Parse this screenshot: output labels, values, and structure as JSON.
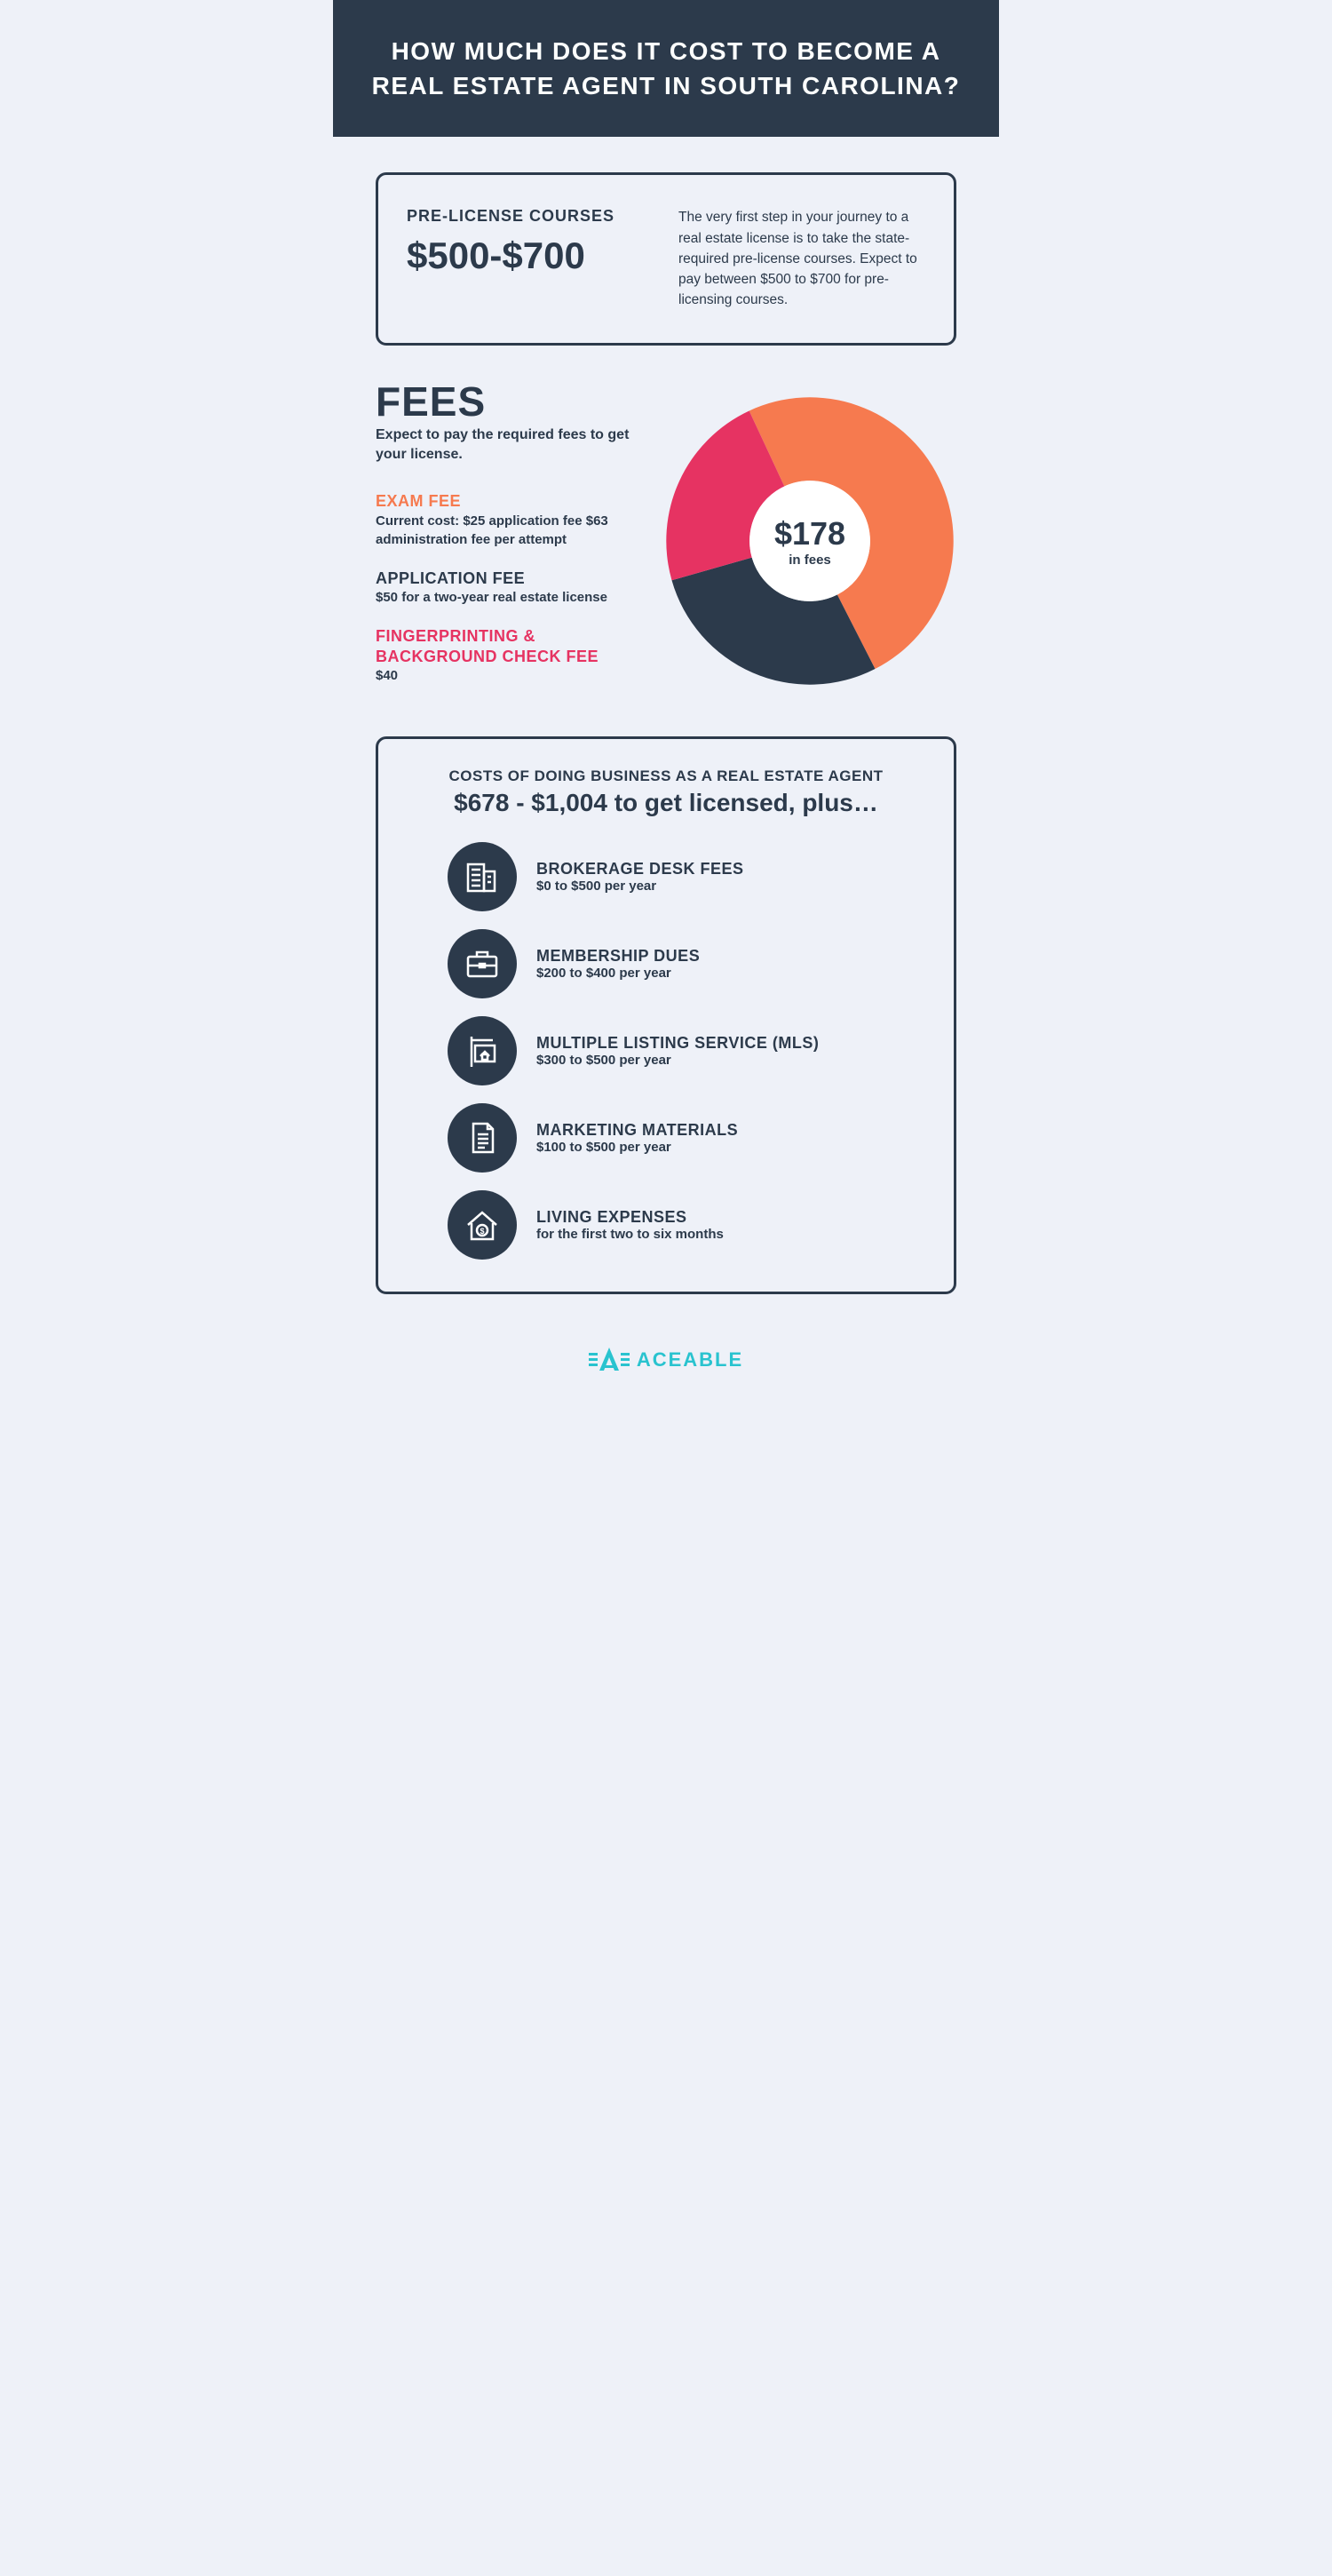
{
  "colors": {
    "dark": "#2c3a4b",
    "bg": "#eef1f8",
    "orange": "#f67a4f",
    "pink": "#e63362",
    "teal": "#29c3cf",
    "white": "#ffffff"
  },
  "header": {
    "title": "HOW MUCH DOES IT COST TO BECOME A REAL ESTATE AGENT IN SOUTH CAROLINA?"
  },
  "prelicense": {
    "label": "PRE-LICENSE COURSES",
    "price": "$500-$700",
    "desc": "The very first step in your journey to a real estate license is to take the state-required pre-license courses. Expect to pay between $500 to $700 for pre-licensing courses."
  },
  "fees": {
    "heading": "FEES",
    "sub": "Expect to pay the required fees to get your license.",
    "items": [
      {
        "title": "EXAM FEE",
        "color": "#f67a4f",
        "desc": "Current cost: $25 application fee $63 administration fee per attempt"
      },
      {
        "title": "APPLICATION FEE",
        "color": "#2c3a4b",
        "desc": "$50 for a two-year real estate license"
      },
      {
        "title": "FINGERPRINTING & BACKGROUND CHECK FEE",
        "color": "#e63362",
        "desc": "$40"
      }
    ],
    "donut": {
      "type": "donut",
      "total_label": "$178",
      "sub_label": "in fees",
      "inner_radius_pct": 42,
      "slices": [
        {
          "value": 88,
          "color": "#f67a4f"
        },
        {
          "value": 50,
          "color": "#2c3a4b"
        },
        {
          "value": 40,
          "color": "#e63362"
        }
      ],
      "start_angle_deg": -25
    }
  },
  "business": {
    "sub": "COSTS OF DOING BUSINESS AS A REAL ESTATE AGENT",
    "main": "$678 - $1,004 to get licensed, plus…",
    "items": [
      {
        "title": "BROKERAGE DESK FEES",
        "desc": "$0 to $500 per year",
        "icon": "building"
      },
      {
        "title": "MEMBERSHIP DUES",
        "desc": "$200 to $400 per year",
        "icon": "briefcase"
      },
      {
        "title": "MULTIPLE LISTING SERVICE (MLS)",
        "desc": "$300 to $500 per year",
        "icon": "sign"
      },
      {
        "title": "MARKETING MATERIALS",
        "desc": "$100 to $500 per year",
        "icon": "document"
      },
      {
        "title": "LIVING EXPENSES",
        "desc": "for the first two to six months",
        "icon": "house-dollar"
      }
    ]
  },
  "footer": {
    "brand": "ACEABLE"
  }
}
